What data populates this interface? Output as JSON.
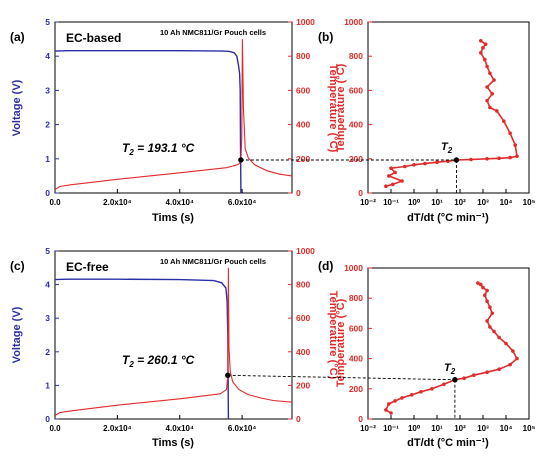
{
  "chart_data": [
    {
      "type": "line",
      "panel_label": "(a)",
      "panel_title": "EC-based",
      "cell_label": "10 Ah NMC811/Gr Pouch cells",
      "xlabel": "Tims (s)",
      "ylabel_left": "Voltage (V)",
      "ylabel_right": "Temperature (°C)",
      "x_ticks": [
        "0.0",
        "2.0x10⁴",
        "4.0x10⁴",
        "6.0x10⁴"
      ],
      "x_tick_values": [
        0,
        20000,
        40000,
        60000
      ],
      "ylim_left": [
        0,
        5
      ],
      "yticks_left": [
        "0",
        "1",
        "2",
        "3",
        "4",
        "5"
      ],
      "ylim_right": [
        0,
        1000
      ],
      "yticks_right": [
        "0",
        "200",
        "400",
        "600",
        "800",
        "1000"
      ],
      "xlim": [
        0,
        76000
      ],
      "annotation": {
        "prefix": "T",
        "sub": "2",
        "value": " = 193.1 °C"
      },
      "series": [
        {
          "axis": "left",
          "color": "#2b2fa6",
          "x": [
            0,
            4000,
            20000,
            40000,
            54000,
            56000,
            57500,
            58300,
            58800,
            59200,
            59400,
            59500,
            59600
          ],
          "y": [
            4.15,
            4.16,
            4.16,
            4.16,
            4.15,
            4.14,
            4.1,
            4.0,
            3.75,
            3.5,
            3.0,
            1.5,
            0
          ]
        },
        {
          "axis": "right",
          "color": "#e22a2a",
          "x": [
            0,
            1500,
            5000,
            20000,
            40000,
            55000,
            58500,
            59300,
            59600,
            59900,
            60100,
            60400,
            61000,
            62000,
            64000,
            68000,
            72000,
            76000
          ],
          "y": [
            20,
            38,
            48,
            80,
            118,
            148,
            165,
            175,
            193,
            330,
            900,
            500,
            260,
            205,
            165,
            130,
            110,
            100
          ]
        }
      ]
    },
    {
      "type": "scatter",
      "panel_label": "(b)",
      "xlabel": "dT/dt (°C min⁻¹)",
      "ylabel": "Temperature (°C)",
      "x_scale": "log",
      "x_ticks": [
        "10⁻²",
        "10⁻¹",
        "10⁰",
        "10¹",
        "10²",
        "10³",
        "10⁴",
        "10⁵"
      ],
      "xlim_log10": [
        -2,
        5
      ],
      "ylim": [
        0,
        1000
      ],
      "yticks": [
        "0",
        "200",
        "400",
        "600",
        "800",
        "1000"
      ],
      "annotation": {
        "prefix": "T",
        "sub": "2",
        "value": ""
      },
      "marker_point": {
        "x": 70,
        "y": 193
      },
      "series": [
        {
          "color": "#e22a2a",
          "x": [
            0.06,
            0.12,
            0.3,
            0.08,
            0.15,
            0.1,
            0.4,
            1,
            3,
            10,
            30,
            70,
            300,
            1500,
            5000,
            15000,
            30000,
            25000,
            15000,
            8000,
            4000,
            2000,
            1500,
            2500,
            1500,
            3000,
            2000,
            1500,
            1200,
            800,
            1000,
            1300,
            800
          ],
          "y": [
            40,
            50,
            70,
            100,
            120,
            145,
            155,
            165,
            172,
            180,
            186,
            193,
            196,
            200,
            203,
            207,
            215,
            280,
            350,
            420,
            480,
            500,
            540,
            580,
            620,
            660,
            700,
            740,
            780,
            820,
            850,
            870,
            890
          ]
        }
      ]
    },
    {
      "type": "line",
      "panel_label": "(c)",
      "panel_title": "EC-free",
      "cell_label": "10 Ah NMC811/Gr Pouch cells",
      "xlabel": "Tims (s)",
      "ylabel_left": "Voltage (V)",
      "ylabel_right": "Temperature (°C)",
      "x_ticks": [
        "0.0",
        "2.0x10⁴",
        "4.0x10⁴",
        "6.0x10⁴"
      ],
      "x_tick_values": [
        0,
        20000,
        40000,
        60000
      ],
      "ylim_left": [
        0,
        5
      ],
      "yticks_left": [
        "0",
        "1",
        "2",
        "3",
        "4",
        "5"
      ],
      "ylim_right": [
        0,
        1000
      ],
      "yticks_right": [
        "0",
        "200",
        "400",
        "600",
        "800",
        "1000"
      ],
      "xlim": [
        0,
        76000
      ],
      "annotation": {
        "prefix": "T",
        "sub": "2",
        "value": " = 260.1 °C"
      },
      "series": [
        {
          "axis": "left",
          "color": "#2b2fa6",
          "x": [
            0,
            4000,
            20000,
            40000,
            51000,
            53500,
            54800,
            55200,
            55400,
            55500,
            55600
          ],
          "y": [
            4.15,
            4.16,
            4.16,
            4.15,
            4.12,
            4.05,
            3.9,
            3.5,
            2.5,
            1.2,
            0
          ]
        },
        {
          "axis": "right",
          "color": "#e22a2a",
          "x": [
            0,
            1500,
            5000,
            20000,
            40000,
            53000,
            55000,
            55400,
            55600,
            55800,
            56200,
            57000,
            59000,
            62000,
            66000,
            70000,
            76000
          ],
          "y": [
            20,
            38,
            48,
            82,
            120,
            150,
            175,
            260,
            900,
            420,
            280,
            220,
            175,
            145,
            125,
            110,
            100
          ]
        }
      ]
    },
    {
      "type": "scatter",
      "panel_label": "(d)",
      "xlabel": "dT/dt (°C min⁻¹)",
      "ylabel": "Temperature (°C)",
      "x_scale": "log",
      "x_ticks": [
        "10⁻²",
        "10⁻¹",
        "10⁰",
        "10¹",
        "10²",
        "10³",
        "10⁴",
        "10⁵"
      ],
      "xlim_log10": [
        -2,
        5
      ],
      "ylim": [
        0,
        1000
      ],
      "yticks": [
        "0",
        "200",
        "400",
        "600",
        "800",
        "1000"
      ],
      "annotation": {
        "prefix": "T",
        "sub": "2",
        "value": ""
      },
      "marker_point": {
        "x": 60,
        "y": 260
      },
      "series": [
        {
          "color": "#e22a2a",
          "x": [
            0.1,
            0.06,
            0.08,
            0.15,
            0.3,
            0.8,
            2,
            6,
            20,
            60,
            150,
            400,
            1500,
            5000,
            15000,
            30000,
            20000,
            10000,
            5000,
            3000,
            2000,
            1500,
            2500,
            2000,
            1500,
            1200,
            1500,
            1000,
            800,
            600
          ],
          "y": [
            40,
            60,
            100,
            120,
            140,
            160,
            180,
            200,
            230,
            260,
            270,
            290,
            310,
            330,
            360,
            400,
            450,
            500,
            540,
            580,
            610,
            650,
            700,
            740,
            780,
            820,
            850,
            870,
            890,
            900
          ]
        }
      ]
    }
  ]
}
